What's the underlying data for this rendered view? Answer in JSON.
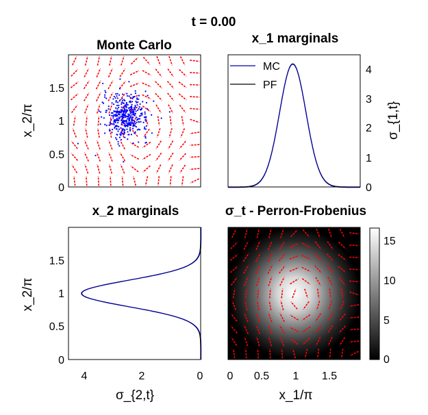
{
  "figure": {
    "suptitle": "t = 0.00"
  },
  "colors": {
    "arrows": "#ff0000",
    "mc_points": "#0000ff",
    "mc_line": "#0000aa",
    "pf_line": "#000000",
    "axes": "#000000"
  },
  "chart_data": [
    {
      "id": "monte-carlo",
      "type": "scatter",
      "title": "Monte Carlo",
      "xlabel": "",
      "ylabel": "x_2/π",
      "xlim": [
        0,
        2
      ],
      "ylim": [
        0,
        2
      ],
      "yticks": [
        "0",
        "0.5",
        "1",
        "1.5"
      ],
      "yticks_values": [
        0,
        0.5,
        1,
        1.5
      ],
      "overlay": "red quiver field",
      "points_center": [
        0.87,
        1.07
      ],
      "points_spread": [
        0.17,
        0.17
      ],
      "n_points": 420
    },
    {
      "id": "x1-marginals",
      "type": "line",
      "title": "x_1 marginals",
      "ylabel": "σ_{1,t}",
      "ylabel_position": "right",
      "xlim": [
        0,
        2
      ],
      "ylim": [
        0,
        4.4
      ],
      "yticks": [
        "0",
        "1",
        "2",
        "3",
        "4"
      ],
      "yticks_values": [
        0,
        1,
        2,
        3,
        4
      ],
      "legend": [
        "MC",
        "PF"
      ],
      "legend_position": "top-left",
      "series": [
        {
          "name": "MC",
          "peak_x": 0.98,
          "peak_y": 4.1,
          "width": 0.2
        },
        {
          "name": "PF",
          "peak_x": 0.98,
          "peak_y": 4.1,
          "width": 0.2
        }
      ]
    },
    {
      "id": "x2-marginals",
      "type": "line",
      "title": "x_2 marginals",
      "xlabel": "σ_{2,t}",
      "ylabel": "x_2/π",
      "xlim": [
        4.6,
        0
      ],
      "ylim": [
        0,
        2
      ],
      "xticks": [
        "4",
        "2",
        "0"
      ],
      "xticks_values": [
        4,
        2,
        0
      ],
      "yticks": [
        "0",
        "0.5",
        "1",
        "1.5"
      ],
      "yticks_values": [
        0,
        0.5,
        1,
        1.5
      ],
      "series": [
        {
          "name": "MC",
          "peak_y": 1.0,
          "peak_x": 4.15,
          "width": 0.2
        },
        {
          "name": "PF",
          "peak_y": 1.0,
          "peak_x": 4.15,
          "width": 0.2
        }
      ]
    },
    {
      "id": "sigma-pf",
      "type": "heatmap",
      "title": "σ_t - Perron-Frobenius",
      "xlabel": "x_1/π",
      "xlim": [
        0,
        2
      ],
      "ylim": [
        0,
        2
      ],
      "xticks": [
        "0",
        "0.5",
        "1",
        "1.5"
      ],
      "xticks_values": [
        0,
        0.5,
        1,
        1.5
      ],
      "colorbar_ticks": [
        "0",
        "5",
        "10",
        "15"
      ],
      "colorbar_values": [
        0,
        5,
        10,
        15
      ],
      "colorbar_max": 16.5,
      "peak_center": [
        1.0,
        1.0
      ],
      "peak_value": 16.5,
      "overlay": "red quiver field"
    }
  ]
}
